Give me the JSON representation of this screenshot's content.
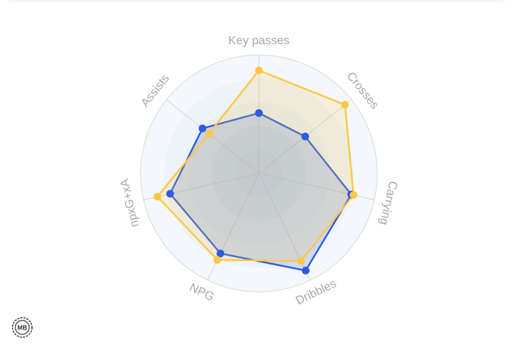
{
  "chart_data": {
    "type": "radar",
    "categories": [
      "Key passes",
      "Crosses",
      "Carrying",
      "Dribbles",
      "NPG",
      "npxG+xA",
      "Assists"
    ],
    "ylim": [
      0,
      100
    ],
    "series": [
      {
        "color": "#2f5be0",
        "values": [
          51,
          50,
          80,
          91,
          75,
          77,
          61
        ]
      },
      {
        "color": "#fcc744",
        "values": [
          87,
          93,
          82,
          82,
          81,
          88,
          54
        ]
      }
    ]
  },
  "logo": "MB"
}
